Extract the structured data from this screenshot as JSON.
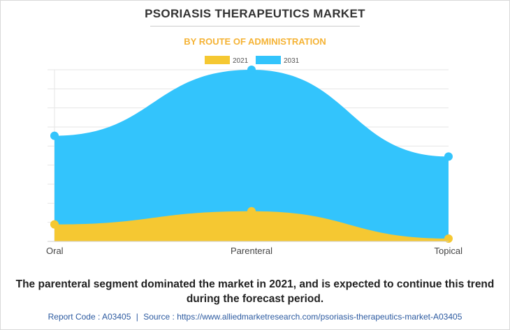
{
  "header": {
    "title": "PSORIASIS THERAPEUTICS MARKET",
    "subtitle": "BY ROUTE OF ADMINISTRATION"
  },
  "chart_data": {
    "type": "area",
    "categories": [
      "Oral",
      "Parenteral",
      "Topical"
    ],
    "series": [
      {
        "name": "2021",
        "color": "#f5c832",
        "values": [
          0.9,
          1.6,
          0.15
        ]
      },
      {
        "name": "2031",
        "color": "#33c4fc",
        "values": [
          5.6,
          9.1,
          4.5
        ]
      }
    ],
    "ylim": [
      0,
      9.1
    ],
    "grid": true,
    "legend_position": "top-center",
    "ytick_labels_visible": false
  },
  "caption": "The parenteral segment dominated the market in 2021, and is expected to continue this trend during the forecast period.",
  "footer": {
    "report_code": "Report Code : A03405",
    "separator": "|",
    "source": "Source : https://www.alliedmarketresearch.com/psoriasis-therapeutics-market-A03405"
  }
}
